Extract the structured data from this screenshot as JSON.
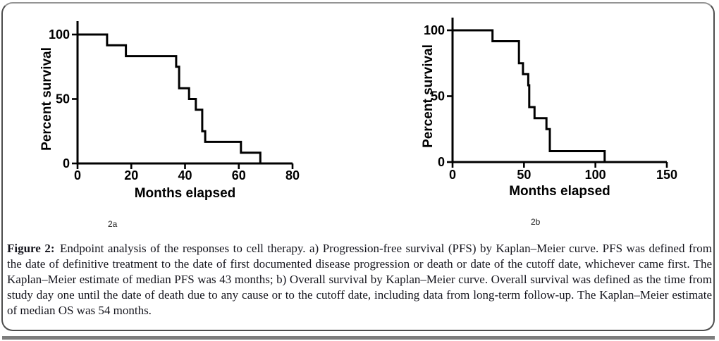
{
  "figure": {
    "caption_label": "Figure 2:",
    "caption_text": "Endpoint analysis of the responses to cell therapy. a) Progression-free survival (PFS) by Kaplan–Meier curve. PFS was defined from the date of definitive treatment to the date of first documented disease progression or death or date of the cutoff date, whichever came first. The Kaplan–Meier estimate of median PFS was 43 months; b) Overall survival by Kaplan–Meier curve. Overall survival was defined as the time from study day one until the date of death due to any cause or to the cutoff date, including data from long-term follow-up. The Kaplan–Meier estimate of median OS was 54 months."
  },
  "chart_data": [
    {
      "type": "line",
      "subtype": "kaplan-meier-step",
      "panel_label": "2a",
      "name": "Progression-free survival (PFS)",
      "xlabel": "Months elapsed",
      "ylabel": "Percent survival",
      "xlim": [
        0,
        80
      ],
      "ylim": [
        0,
        100
      ],
      "x_ticks": [
        0,
        20,
        40,
        60,
        80
      ],
      "y_ticks": [
        0,
        50,
        100
      ],
      "grid": false,
      "legend": "none",
      "line_color": "#000000",
      "start_point": [
        0,
        100
      ],
      "steps": [
        [
          11,
          91.7
        ],
        [
          18,
          83.3
        ],
        [
          36.7,
          75
        ],
        [
          37.8,
          58.3
        ],
        [
          41.5,
          50
        ],
        [
          44,
          41.7
        ],
        [
          46.4,
          25
        ],
        [
          47.5,
          16.7
        ],
        [
          60.8,
          8.3
        ],
        [
          68,
          0
        ]
      ],
      "median_months": 43
    },
    {
      "type": "line",
      "subtype": "kaplan-meier-step",
      "panel_label": "2b",
      "name": "Overall survival (OS)",
      "xlabel": "Months elapsed",
      "ylabel": "Percent survival",
      "xlim": [
        0,
        150
      ],
      "ylim": [
        0,
        100
      ],
      "x_ticks": [
        0,
        50,
        100,
        150
      ],
      "y_ticks": [
        0,
        50,
        100
      ],
      "grid": false,
      "legend": "none",
      "line_color": "#000000",
      "start_point": [
        0,
        100
      ],
      "steps": [
        [
          28,
          91.7
        ],
        [
          46.5,
          75
        ],
        [
          49.3,
          66.7
        ],
        [
          53,
          58.3
        ],
        [
          53.7,
          41.7
        ],
        [
          57.4,
          33.3
        ],
        [
          65.7,
          25
        ],
        [
          68.1,
          8.3
        ],
        [
          106.5,
          0
        ]
      ],
      "median_months": 54
    }
  ]
}
